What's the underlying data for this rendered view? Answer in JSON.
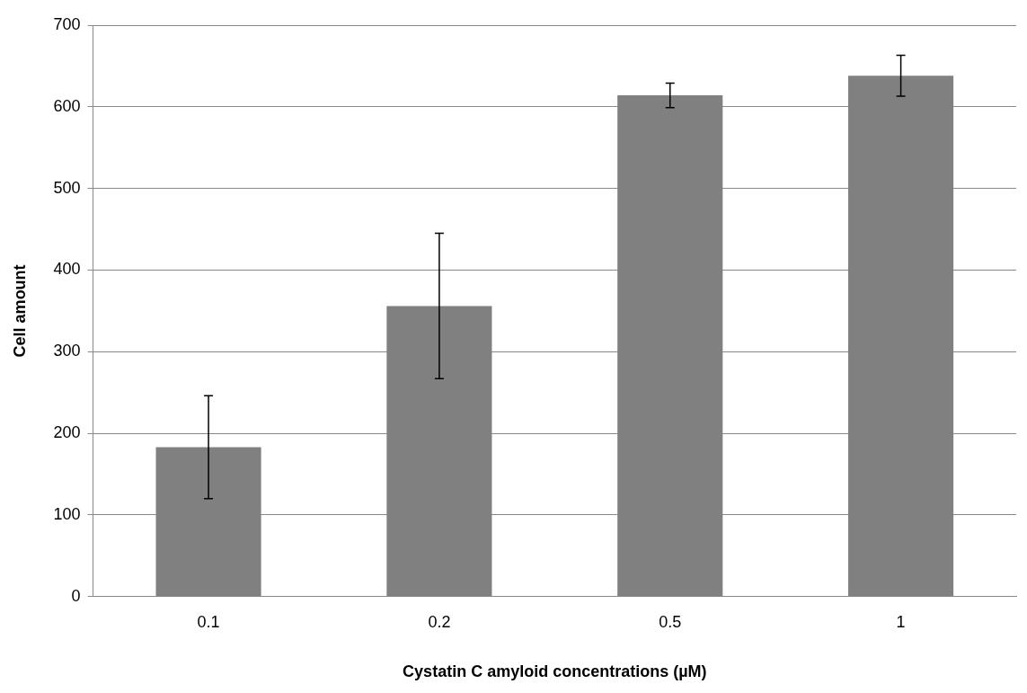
{
  "chart_data": {
    "type": "bar",
    "xlabel": "Cystatin C amyloid concentrations (µM)",
    "ylabel": "Cell amount",
    "categories": [
      "0.1",
      "0.2",
      "0.5",
      "1"
    ],
    "values": [
      183,
      356,
      614,
      638
    ],
    "errors": [
      63,
      89,
      15,
      25
    ],
    "color": "#808080",
    "ylim": [
      0,
      700
    ],
    "yticks": [
      0,
      100,
      200,
      300,
      400,
      500,
      600,
      700
    ],
    "grid": "y",
    "legend": false
  }
}
